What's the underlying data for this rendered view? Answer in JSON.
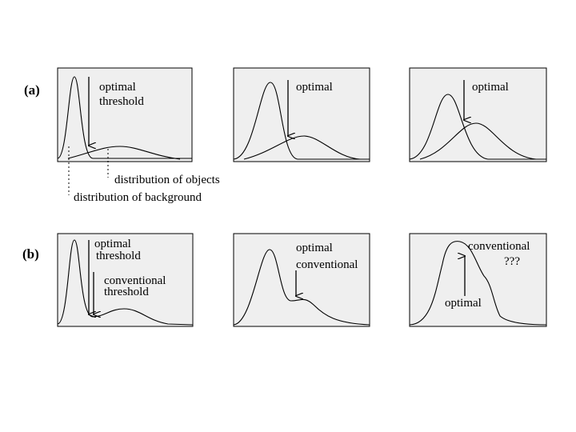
{
  "row_a": {
    "label": "(a)",
    "panels": [
      [
        "optimal",
        "threshold"
      ],
      [
        "optimal"
      ],
      [
        "optimal"
      ]
    ],
    "annotations": [
      "distribution of objects",
      "distribution of background"
    ]
  },
  "row_b": {
    "label": "(b)",
    "panels": [
      [
        "optimal",
        "threshold",
        "conventional",
        "threshold"
      ],
      [
        "optimal",
        "conventional"
      ],
      [
        "conventional",
        "???",
        "optimal"
      ]
    ]
  }
}
